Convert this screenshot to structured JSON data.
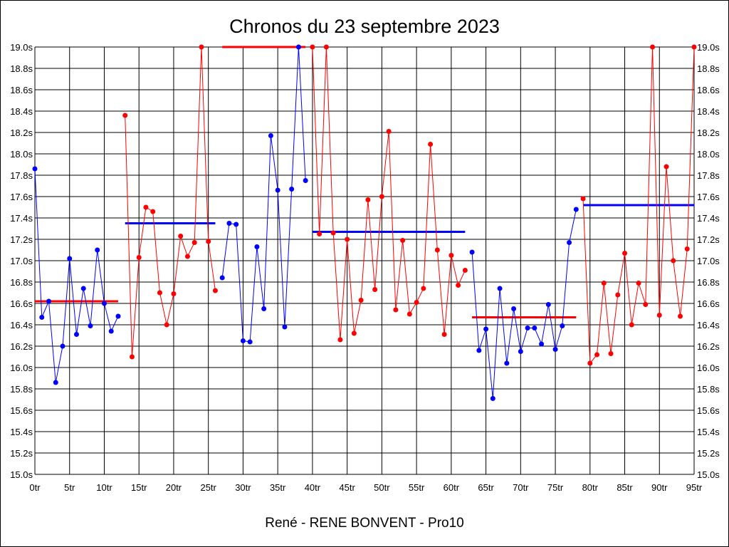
{
  "chart_data": {
    "type": "line",
    "title": "Chronos du 23 septembre 2023",
    "xlabel": "René - RENE BONVENT - Pro10",
    "ylabel": "",
    "x_range": [
      0,
      95
    ],
    "ylim": [
      15.0,
      19.0
    ],
    "y_ticks": [
      "15.0s",
      "15.2s",
      "15.4s",
      "15.6s",
      "15.8s",
      "16.0s",
      "16.2s",
      "16.4s",
      "16.6s",
      "16.8s",
      "17.0s",
      "17.2s",
      "17.4s",
      "17.6s",
      "17.8s",
      "18.0s",
      "18.2s",
      "18.4s",
      "18.6s",
      "18.8s",
      "19.0s"
    ],
    "x_ticks": [
      "0tr",
      "5tr",
      "10tr",
      "15tr",
      "20tr",
      "25tr",
      "30tr",
      "35tr",
      "40tr",
      "45tr",
      "50tr",
      "55tr",
      "60tr",
      "65tr",
      "70tr",
      "75tr",
      "80tr",
      "85tr",
      "90tr",
      "95tr"
    ],
    "y_axis_both_sides": true,
    "grid": true,
    "colors": {
      "blue": "#0000ff",
      "red": "#ff0000",
      "grid": "#000000"
    },
    "series": [
      {
        "color": "#0000ff",
        "x": [
          0,
          1,
          2,
          3,
          4,
          5,
          6,
          7,
          8,
          9,
          10,
          11,
          12
        ],
        "y": [
          17.86,
          16.47,
          16.62,
          15.86,
          16.2,
          17.02,
          16.31,
          16.74,
          16.39,
          17.1,
          16.6,
          16.34,
          16.48
        ]
      },
      {
        "color": "#ff0000",
        "x": [
          13,
          14,
          15,
          16,
          17,
          18,
          19,
          20,
          21,
          22,
          23,
          24,
          25,
          26
        ],
        "y": [
          18.36,
          16.1,
          17.03,
          17.5,
          17.46,
          16.7,
          16.4,
          16.69,
          17.23,
          17.04,
          17.17,
          19.0,
          17.18,
          16.72
        ]
      },
      {
        "color": "#0000ff",
        "x": [
          27,
          28,
          29,
          30,
          31,
          32,
          33,
          34,
          35,
          36,
          37,
          38,
          39
        ],
        "y": [
          16.84,
          17.35,
          17.34,
          16.25,
          16.24,
          17.13,
          16.55,
          18.17,
          17.66,
          16.38,
          17.67,
          19.0,
          17.75
        ]
      },
      {
        "color": "#ff0000",
        "x": [
          40,
          41,
          42,
          43,
          44,
          45,
          46,
          47,
          48,
          49,
          50,
          51,
          52,
          53,
          54,
          55,
          56,
          57,
          58,
          59,
          60,
          61,
          62
        ],
        "y": [
          19.0,
          17.25,
          19.0,
          17.26,
          16.26,
          17.2,
          16.32,
          16.63,
          17.57,
          16.73,
          17.6,
          18.21,
          16.54,
          17.19,
          16.5,
          16.61,
          16.74,
          18.09,
          17.1,
          16.31,
          17.05,
          16.77,
          16.91
        ]
      },
      {
        "color": "#0000ff",
        "x": [
          63,
          64,
          65,
          66,
          67,
          68,
          69,
          70,
          71,
          72,
          73,
          74,
          75,
          76,
          77,
          78
        ],
        "y": [
          17.08,
          16.16,
          16.36,
          15.71,
          16.74,
          16.04,
          16.55,
          16.15,
          16.37,
          16.37,
          16.22,
          16.59,
          16.17,
          16.39,
          17.17,
          17.48
        ]
      },
      {
        "color": "#ff0000",
        "x": [
          79,
          80,
          81,
          82,
          83,
          84,
          85,
          86,
          87,
          88,
          89,
          90,
          91,
          92,
          93,
          94,
          95
        ],
        "y": [
          17.58,
          16.04,
          16.12,
          16.79,
          16.13,
          16.68,
          17.07,
          16.4,
          16.79,
          16.59,
          19.0,
          16.49,
          17.88,
          17.0,
          16.48,
          17.11,
          19.0
        ]
      }
    ],
    "averages": [
      {
        "color": "#ff0000",
        "x_start": 0,
        "x_end": 12,
        "y": 16.62
      },
      {
        "color": "#0000ff",
        "x_start": 13,
        "x_end": 26,
        "y": 17.35
      },
      {
        "color": "#ff0000",
        "x_start": 27,
        "x_end": 39,
        "y": 19.0
      },
      {
        "color": "#0000ff",
        "x_start": 40,
        "x_end": 62,
        "y": 17.27
      },
      {
        "color": "#ff0000",
        "x_start": 63,
        "x_end": 78,
        "y": 16.47
      },
      {
        "color": "#0000ff",
        "x_start": 79,
        "x_end": 95,
        "y": 17.52
      }
    ]
  }
}
